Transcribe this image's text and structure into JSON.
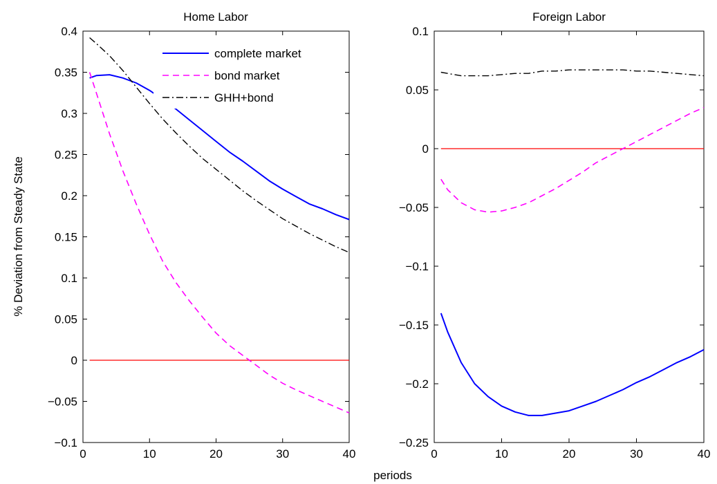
{
  "figure": {
    "ylabel": "% Deviation from Steady State",
    "xlabel": "periods"
  },
  "colors": {
    "complete": "#0000ff",
    "bond": "#ff00ff",
    "ghh": "#000000",
    "zero": "#ff0000",
    "axes": "#000000"
  },
  "legend": [
    {
      "label": "complete market",
      "style": "solid",
      "color": "#0000ff"
    },
    {
      "label": "bond market",
      "style": "dashed",
      "color": "#ff00ff"
    },
    {
      "label": "GHH+bond",
      "style": "dashdot",
      "color": "#000000"
    }
  ],
  "chart_data": [
    {
      "type": "line",
      "title": "Home Labor",
      "xlim": [
        0,
        40
      ],
      "ylim": [
        -0.1,
        0.4
      ],
      "xticks": [
        "0",
        "10",
        "20",
        "30",
        "40"
      ],
      "yticks": [
        "0.4",
        "0.35",
        "0.3",
        "0.25",
        "0.2",
        "0.15",
        "0.1",
        "0.05",
        "0",
        "−0.05",
        "−0.1"
      ],
      "legend_position": "top-right",
      "x": [
        1,
        2,
        4,
        6,
        8,
        10,
        12,
        14,
        16,
        18,
        20,
        22,
        24,
        26,
        28,
        30,
        32,
        34,
        36,
        38,
        40
      ],
      "series": [
        {
          "name": "complete market",
          "color": "#0000ff",
          "style": "solid",
          "values": [
            0.343,
            0.346,
            0.347,
            0.343,
            0.337,
            0.328,
            0.317,
            0.305,
            0.292,
            0.279,
            0.266,
            0.253,
            0.242,
            0.23,
            0.218,
            0.208,
            0.199,
            0.19,
            0.184,
            0.177,
            0.171
          ]
        },
        {
          "name": "bond market",
          "color": "#ff00ff",
          "style": "dashed",
          "values": [
            0.35,
            0.325,
            0.275,
            0.23,
            0.19,
            0.153,
            0.12,
            0.094,
            0.072,
            0.052,
            0.033,
            0.018,
            0.006,
            -0.006,
            -0.018,
            -0.028,
            -0.036,
            -0.043,
            -0.05,
            -0.057,
            -0.064
          ]
        },
        {
          "name": "GHH+bond",
          "color": "#000000",
          "style": "dashdot",
          "values": [
            0.392,
            0.385,
            0.37,
            0.352,
            0.332,
            0.312,
            0.293,
            0.276,
            0.26,
            0.245,
            0.232,
            0.219,
            0.206,
            0.194,
            0.183,
            0.172,
            0.163,
            0.154,
            0.146,
            0.138,
            0.131
          ]
        },
        {
          "name": "",
          "color": "#ff0000",
          "style": "solid",
          "values": [
            0,
            0,
            0,
            0,
            0,
            0,
            0,
            0,
            0,
            0,
            0,
            0,
            0,
            0,
            0,
            0,
            0,
            0,
            0,
            0,
            0
          ]
        }
      ]
    },
    {
      "type": "line",
      "title": "Foreign Labor",
      "xlim": [
        0,
        40
      ],
      "ylim": [
        -0.25,
        0.1
      ],
      "xticks": [
        "0",
        "10",
        "20",
        "30",
        "40"
      ],
      "yticks": [
        "0.1",
        "0.05",
        "0",
        "−0.05",
        "−0.1",
        "−0.15",
        "−0.2",
        "−0.25"
      ],
      "x": [
        1,
        2,
        4,
        6,
        8,
        10,
        12,
        14,
        16,
        18,
        20,
        22,
        24,
        26,
        28,
        30,
        32,
        34,
        36,
        38,
        40
      ],
      "series": [
        {
          "name": "complete market",
          "color": "#0000ff",
          "style": "solid",
          "values": [
            -0.14,
            -0.156,
            -0.182,
            -0.2,
            -0.211,
            -0.219,
            -0.224,
            -0.227,
            -0.227,
            -0.225,
            -0.223,
            -0.219,
            -0.215,
            -0.21,
            -0.205,
            -0.199,
            -0.194,
            -0.188,
            -0.182,
            -0.177,
            -0.171
          ]
        },
        {
          "name": "bond market",
          "color": "#ff00ff",
          "style": "dashed",
          "values": [
            -0.026,
            -0.035,
            -0.046,
            -0.052,
            -0.054,
            -0.053,
            -0.05,
            -0.046,
            -0.04,
            -0.034,
            -0.027,
            -0.02,
            -0.012,
            -0.006,
            0.0,
            0.006,
            0.012,
            0.018,
            0.024,
            0.03,
            0.035
          ]
        },
        {
          "name": "GHH+bond",
          "color": "#000000",
          "style": "dashdot",
          "values": [
            0.065,
            0.064,
            0.062,
            0.062,
            0.062,
            0.063,
            0.064,
            0.064,
            0.066,
            0.066,
            0.067,
            0.067,
            0.067,
            0.067,
            0.067,
            0.066,
            0.066,
            0.065,
            0.064,
            0.063,
            0.062
          ]
        },
        {
          "name": "",
          "color": "#ff0000",
          "style": "solid",
          "values": [
            0,
            0,
            0,
            0,
            0,
            0,
            0,
            0,
            0,
            0,
            0,
            0,
            0,
            0,
            0,
            0,
            0,
            0,
            0,
            0,
            0
          ]
        }
      ]
    }
  ]
}
